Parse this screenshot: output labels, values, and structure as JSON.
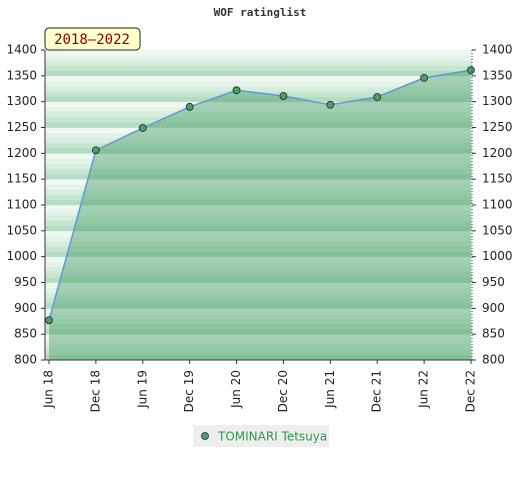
{
  "chart_data": {
    "type": "area",
    "title": "WOF ratinglist",
    "period": "2018–2022",
    "categories": [
      "Jun 18",
      "Dec 18",
      "Jun 19",
      "Dec 19",
      "Jun 20",
      "Dec 20",
      "Jun 21",
      "Dec 21",
      "Jun 22",
      "Dec 22"
    ],
    "series": [
      {
        "name": "TOMINARI Tetsuya",
        "color": "#4a9f6a",
        "values": [
          877,
          1206,
          1249,
          1290,
          1322,
          1311,
          1294,
          1309,
          1346,
          1361
        ]
      }
    ],
    "ylim": [
      800,
      1400
    ],
    "yticks": [
      800,
      850,
      900,
      950,
      1000,
      1050,
      1100,
      1150,
      1200,
      1250,
      1300,
      1350,
      1400
    ]
  }
}
